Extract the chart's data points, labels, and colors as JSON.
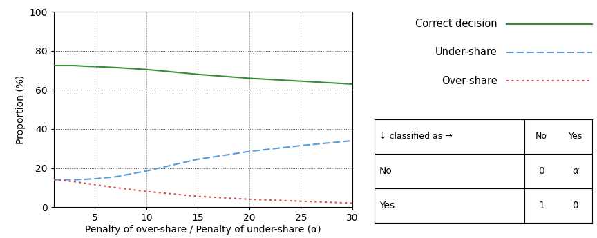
{
  "x": [
    1,
    2,
    3,
    4,
    5,
    7,
    10,
    15,
    20,
    25,
    30
  ],
  "correct": [
    72.5,
    72.5,
    72.5,
    72.2,
    72.0,
    71.5,
    70.5,
    68.0,
    66.0,
    64.5,
    63.0
  ],
  "undershare": [
    14.0,
    14.0,
    14.0,
    14.2,
    14.5,
    15.5,
    18.5,
    24.5,
    28.5,
    31.5,
    34.0
  ],
  "overshare": [
    14.0,
    13.5,
    13.0,
    12.2,
    11.5,
    10.0,
    8.0,
    5.5,
    4.0,
    3.0,
    2.0
  ],
  "correct_color": "#3a8c3a",
  "undershare_color": "#5b9bd5",
  "overshare_color": "#d95050",
  "xlabel": "Penalty of over-share / Penalty of under-share (α)",
  "ylabel": "Proportion (%)",
  "xlim": [
    1,
    30
  ],
  "ylim": [
    0,
    100
  ],
  "xticks": [
    5,
    10,
    15,
    20,
    25,
    30
  ],
  "yticks": [
    0,
    20,
    40,
    60,
    80,
    100
  ],
  "legend_labels": [
    "Correct decision",
    "Under-share",
    "Over-share"
  ],
  "table_header": [
    "↓ classified as →",
    "No",
    "Yes"
  ],
  "table_rows": [
    [
      "No",
      "0",
      "α"
    ],
    [
      "Yes",
      "1",
      "0"
    ]
  ]
}
